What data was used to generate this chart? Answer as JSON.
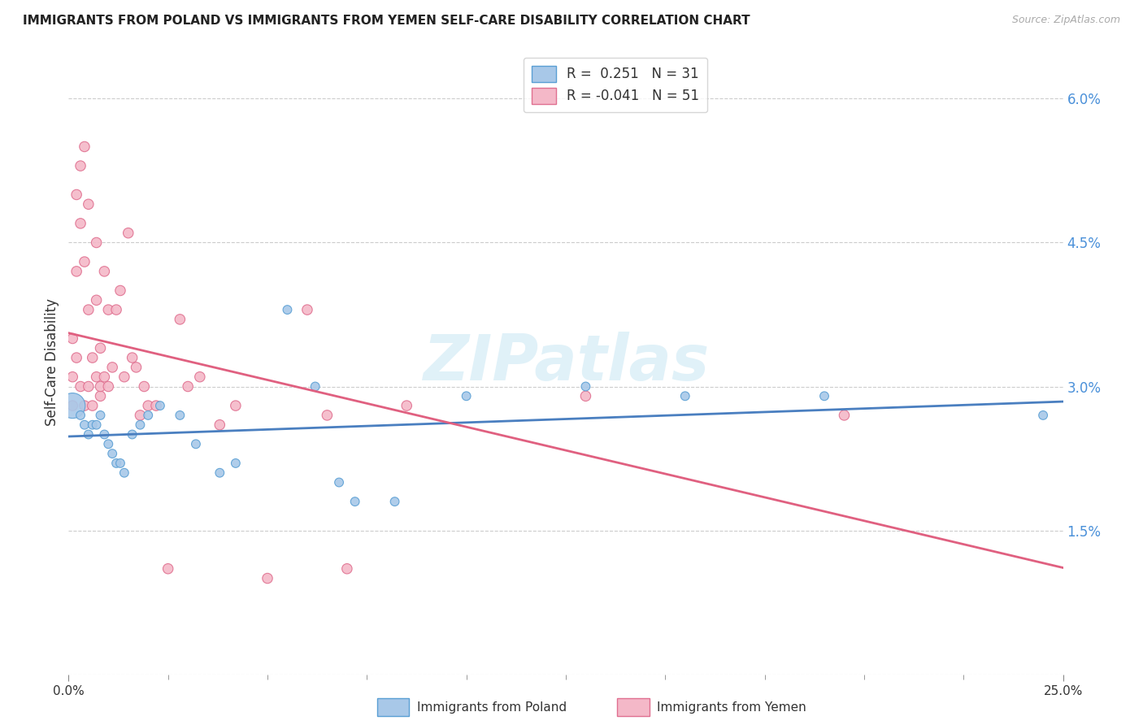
{
  "title": "IMMIGRANTS FROM POLAND VS IMMIGRANTS FROM YEMEN SELF-CARE DISABILITY CORRELATION CHART",
  "source": "Source: ZipAtlas.com",
  "ylabel": "Self-Care Disability",
  "yticks": [
    0.0,
    0.015,
    0.03,
    0.045,
    0.06
  ],
  "ytick_labels": [
    "",
    "1.5%",
    "3.0%",
    "4.5%",
    "6.0%"
  ],
  "xlim": [
    0.0,
    0.25
  ],
  "ylim": [
    0.0,
    0.065
  ],
  "poland_R": 0.251,
  "poland_N": 31,
  "yemen_R": -0.041,
  "yemen_N": 51,
  "poland_color": "#a8c8e8",
  "yemen_color": "#f4b8c8",
  "poland_edge_color": "#5a9fd4",
  "yemen_edge_color": "#e07090",
  "poland_line_color": "#4a7fc0",
  "yemen_line_color": "#e06080",
  "poland_x": [
    0.001,
    0.003,
    0.004,
    0.005,
    0.006,
    0.007,
    0.008,
    0.009,
    0.01,
    0.011,
    0.012,
    0.013,
    0.014,
    0.016,
    0.018,
    0.02,
    0.023,
    0.028,
    0.032,
    0.038,
    0.042,
    0.055,
    0.062,
    0.068,
    0.072,
    0.082,
    0.1,
    0.13,
    0.155,
    0.19,
    0.245
  ],
  "poland_y": [
    0.028,
    0.027,
    0.026,
    0.025,
    0.026,
    0.026,
    0.027,
    0.025,
    0.024,
    0.023,
    0.022,
    0.022,
    0.021,
    0.025,
    0.026,
    0.027,
    0.028,
    0.027,
    0.024,
    0.021,
    0.022,
    0.038,
    0.03,
    0.02,
    0.018,
    0.018,
    0.029,
    0.03,
    0.029,
    0.029,
    0.027
  ],
  "poland_sizes": [
    500,
    60,
    60,
    60,
    60,
    60,
    60,
    60,
    60,
    60,
    60,
    60,
    60,
    60,
    60,
    60,
    60,
    60,
    60,
    60,
    60,
    60,
    60,
    60,
    60,
    60,
    60,
    60,
    60,
    60,
    60
  ],
  "yemen_x": [
    0.001,
    0.001,
    0.001,
    0.002,
    0.002,
    0.002,
    0.003,
    0.003,
    0.003,
    0.004,
    0.004,
    0.004,
    0.005,
    0.005,
    0.005,
    0.006,
    0.006,
    0.007,
    0.007,
    0.007,
    0.008,
    0.008,
    0.008,
    0.009,
    0.009,
    0.01,
    0.01,
    0.011,
    0.012,
    0.013,
    0.014,
    0.015,
    0.016,
    0.017,
    0.018,
    0.019,
    0.02,
    0.022,
    0.025,
    0.028,
    0.03,
    0.033,
    0.038,
    0.042,
    0.05,
    0.06,
    0.065,
    0.07,
    0.085,
    0.13,
    0.195
  ],
  "yemen_y": [
    0.035,
    0.031,
    0.028,
    0.05,
    0.042,
    0.033,
    0.053,
    0.047,
    0.03,
    0.055,
    0.043,
    0.028,
    0.049,
    0.038,
    0.03,
    0.033,
    0.028,
    0.045,
    0.039,
    0.031,
    0.034,
    0.029,
    0.03,
    0.042,
    0.031,
    0.038,
    0.03,
    0.032,
    0.038,
    0.04,
    0.031,
    0.046,
    0.033,
    0.032,
    0.027,
    0.03,
    0.028,
    0.028,
    0.011,
    0.037,
    0.03,
    0.031,
    0.026,
    0.028,
    0.01,
    0.038,
    0.027,
    0.011,
    0.028,
    0.029,
    0.027
  ],
  "yemen_sizes": [
    80,
    80,
    80,
    80,
    80,
    80,
    80,
    80,
    80,
    80,
    80,
    80,
    80,
    80,
    80,
    80,
    80,
    80,
    80,
    80,
    80,
    80,
    80,
    80,
    80,
    80,
    80,
    80,
    80,
    80,
    80,
    80,
    80,
    80,
    80,
    80,
    80,
    80,
    80,
    80,
    80,
    80,
    80,
    80,
    80,
    80,
    80,
    80,
    80,
    80,
    80
  ],
  "watermark": "ZIPatlas",
  "grid_color": "#cccccc",
  "background_color": "#ffffff",
  "xtick_minor_positions": [
    0.025,
    0.05,
    0.075,
    0.1,
    0.125,
    0.15,
    0.175,
    0.2,
    0.225
  ]
}
